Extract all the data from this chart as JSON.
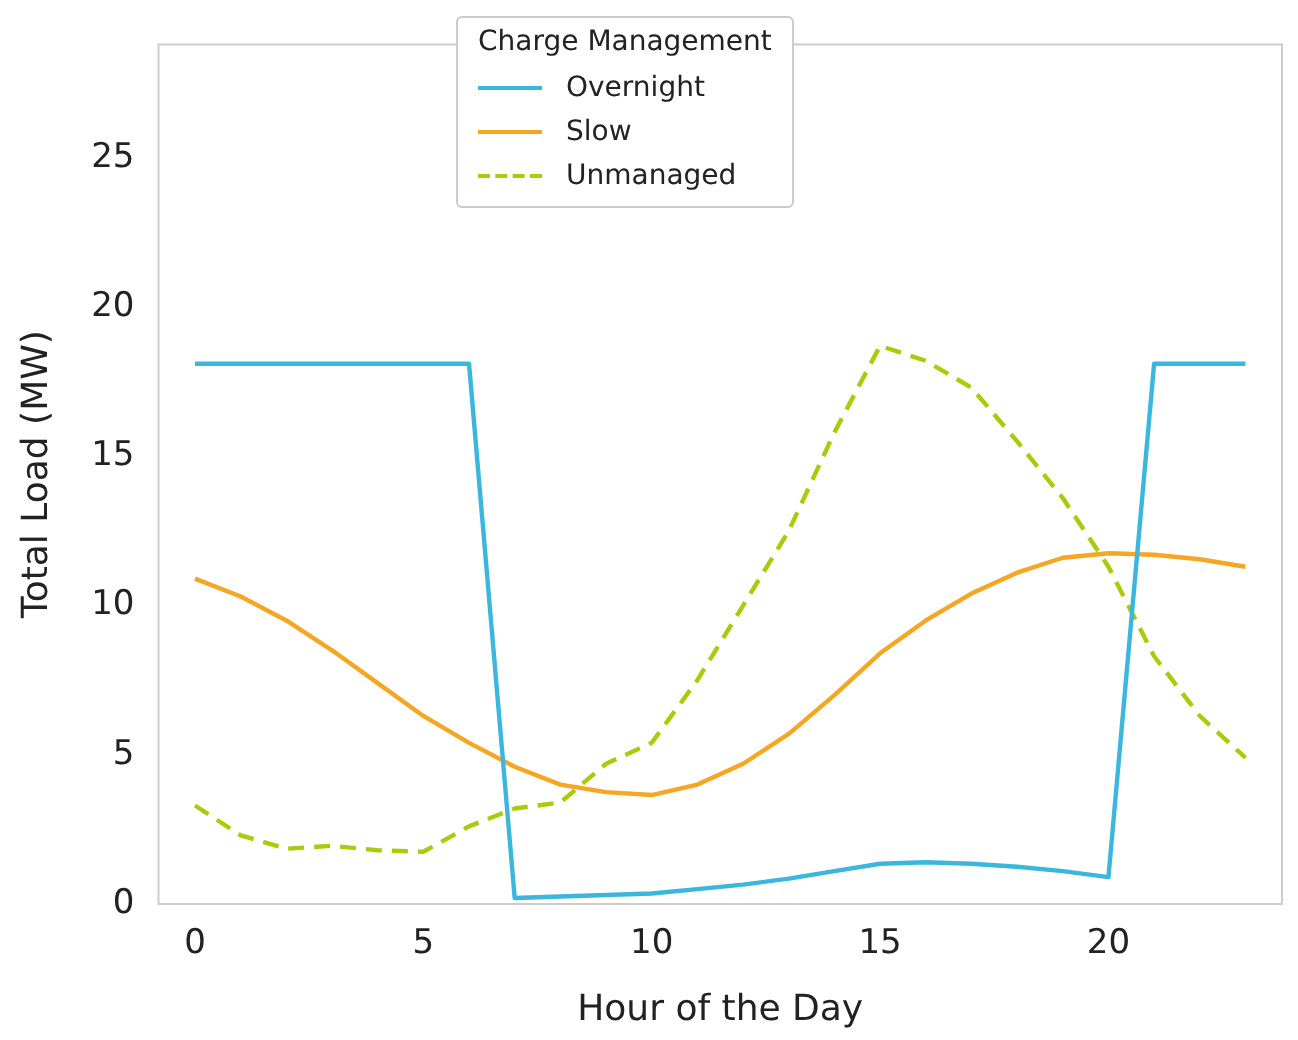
{
  "chart_data": {
    "type": "line",
    "xlabel": "Hour of the Day",
    "ylabel": "Total Load (MW)",
    "legend_title": "Charge Management",
    "legend": "top",
    "grid": false,
    "x": [
      0,
      1,
      2,
      3,
      4,
      5,
      6,
      7,
      8,
      9,
      10,
      11,
      12,
      13,
      14,
      15,
      16,
      17,
      18,
      19,
      20,
      21,
      22,
      23
    ],
    "xlim": [
      -0.8,
      23.8
    ],
    "xticks": [
      0,
      5,
      10,
      15,
      20
    ],
    "ylim": [
      0,
      28.8
    ],
    "yticks": [
      0,
      5,
      10,
      15,
      20,
      25
    ],
    "series": [
      {
        "name": "Overnight",
        "color": "#3bb6dc",
        "line_style": "solid",
        "values": [
          18.1,
          18.1,
          18.1,
          18.1,
          18.1,
          18.1,
          18.1,
          0.2,
          0.25,
          0.3,
          0.35,
          0.5,
          0.65,
          0.85,
          1.1,
          1.35,
          1.4,
          1.35,
          1.25,
          1.1,
          0.9,
          18.1,
          18.1,
          18.1
        ]
      },
      {
        "name": "Slow",
        "color": "#f5a623",
        "line_style": "solid",
        "values": [
          10.9,
          10.3,
          9.5,
          8.5,
          7.4,
          6.3,
          5.4,
          4.6,
          4.0,
          3.75,
          3.65,
          4.0,
          4.7,
          5.7,
          7.0,
          8.4,
          9.5,
          10.4,
          11.1,
          11.6,
          11.75,
          11.7,
          11.55,
          11.3
        ]
      },
      {
        "name": "Unmanaged",
        "color": "#a8cc0c",
        "line_style": "dashed",
        "values": [
          3.3,
          2.3,
          1.85,
          1.95,
          1.8,
          1.75,
          2.6,
          3.2,
          3.4,
          4.7,
          5.4,
          7.5,
          10.0,
          12.5,
          15.8,
          18.7,
          18.2,
          17.3,
          15.5,
          13.6,
          11.3,
          8.3,
          6.3,
          4.9
        ]
      }
    ]
  }
}
